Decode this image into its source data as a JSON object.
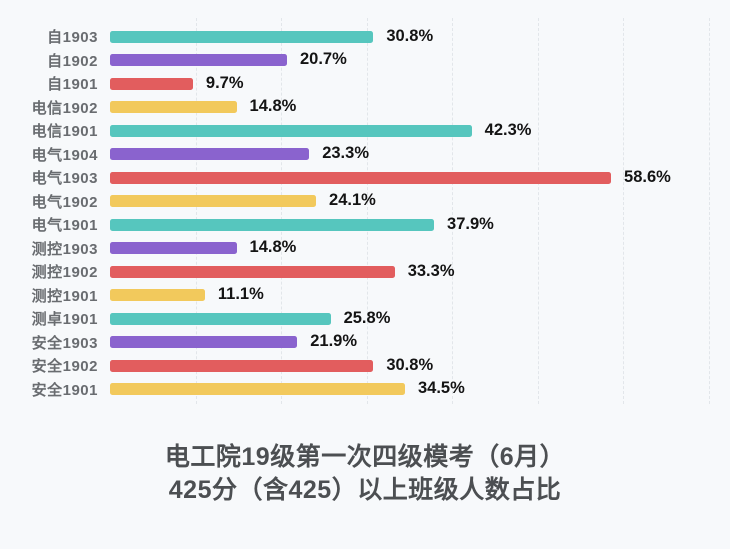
{
  "chart_data": {
    "type": "bar",
    "orientation": "horizontal",
    "categories": [
      "自1903",
      "自1902",
      "自1901",
      "电信1902",
      "电信1901",
      "电气1904",
      "电气1903",
      "电气1902",
      "电气1901",
      "测控1903",
      "测控1902",
      "测控1901",
      "测卓1901",
      "安全1903",
      "安全1902",
      "安全1901"
    ],
    "values": [
      30.8,
      20.7,
      9.7,
      14.8,
      42.3,
      23.3,
      58.6,
      24.1,
      37.9,
      14.8,
      33.3,
      11.1,
      25.8,
      21.9,
      30.8,
      34.5
    ],
    "value_labels": [
      "30.8%",
      "20.7%",
      "9.7%",
      "14.8%",
      "42.3%",
      "23.3%",
      "58.6%",
      "24.1%",
      "37.9%",
      "14.8%",
      "33.3%",
      "11.1%",
      "25.8%",
      "21.9%",
      "30.8%",
      "34.5%"
    ],
    "title_lines": [
      "电工院19级第一次四级模考（6月）",
      "425分（含425）以上班级人数占比"
    ],
    "xlim": [
      0,
      70
    ],
    "grid_interval": 10,
    "grid": true,
    "legend": false,
    "colors": {
      "palette_cycle": [
        "#56c6be",
        "#8a63ce",
        "#e25d5e",
        "#f2c95c"
      ],
      "background": "#f7f9fb",
      "gridline": "#e2e6ea",
      "category_label": "#696c70",
      "value_label": "#141414",
      "title": "#4c4f52"
    }
  }
}
